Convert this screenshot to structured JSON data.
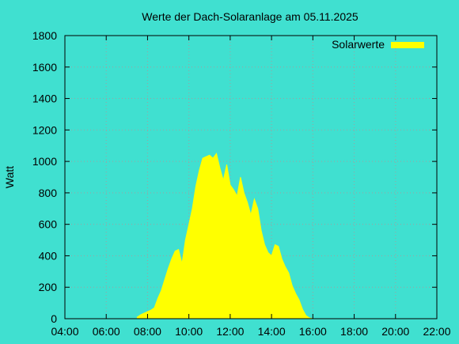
{
  "chart_data": {
    "type": "area",
    "title": "Werte der Dach-Solaranlage am 05.11.2025",
    "xlabel": "",
    "ylabel": "Watt",
    "x_unit": "time (HH:MM)",
    "xlim": [
      "04:00",
      "22:00"
    ],
    "ylim": [
      0,
      1800
    ],
    "x_ticks": [
      "04:00",
      "06:00",
      "08:00",
      "10:00",
      "12:00",
      "14:00",
      "16:00",
      "18:00",
      "20:00",
      "22:00"
    ],
    "y_ticks": [
      "0",
      "200",
      "400",
      "600",
      "800",
      "1000",
      "1200",
      "1400",
      "1600",
      "1800"
    ],
    "grid": true,
    "legend": {
      "position": "top-right",
      "entries": [
        "Solarwerte"
      ]
    },
    "colors": {
      "background": "#40e0d0",
      "series": "#ffff00",
      "grid": "#a0a0a0",
      "axis": "#000000"
    },
    "series": [
      {
        "name": "Solarwerte",
        "x": [
          "07:30",
          "07:40",
          "07:50",
          "08:00",
          "08:10",
          "08:20",
          "08:30",
          "08:40",
          "08:50",
          "09:00",
          "09:10",
          "09:20",
          "09:30",
          "09:40",
          "09:50",
          "10:00",
          "10:10",
          "10:20",
          "10:30",
          "10:40",
          "10:50",
          "11:00",
          "11:10",
          "11:20",
          "11:30",
          "11:40",
          "11:50",
          "12:00",
          "12:10",
          "12:20",
          "12:30",
          "12:40",
          "12:50",
          "13:00",
          "13:10",
          "13:20",
          "13:30",
          "13:40",
          "13:50",
          "14:00",
          "14:10",
          "14:20",
          "14:30",
          "14:40",
          "14:50",
          "15:00",
          "15:10",
          "15:20",
          "15:30",
          "15:40",
          "15:50",
          "16:00",
          "16:10",
          "16:20",
          "16:30"
        ],
        "values": [
          10,
          25,
          35,
          45,
          55,
          70,
          130,
          180,
          250,
          320,
          380,
          430,
          440,
          350,
          500,
          600,
          700,
          840,
          940,
          1020,
          1030,
          1040,
          1020,
          1050,
          960,
          880,
          980,
          850,
          820,
          780,
          900,
          800,
          740,
          660,
          760,
          700,
          560,
          470,
          420,
          400,
          470,
          460,
          380,
          330,
          290,
          210,
          160,
          120,
          60,
          20,
          5,
          0,
          0,
          0,
          0
        ]
      }
    ]
  }
}
